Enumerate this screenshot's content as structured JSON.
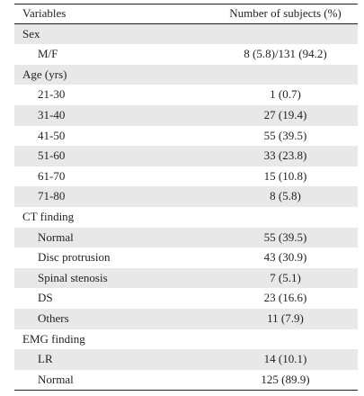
{
  "table": {
    "headers": [
      "Variables",
      "Number of subjects (%)"
    ],
    "rows": [
      {
        "label": "Sex",
        "value": "",
        "indent": false,
        "shaded": true
      },
      {
        "label": "M/F",
        "value": "8 (5.8)/131 (94.2)",
        "indent": true,
        "shaded": false
      },
      {
        "label": "Age (yrs)",
        "value": "",
        "indent": false,
        "shaded": true
      },
      {
        "label": "21-30",
        "value": "1 (0.7)",
        "indent": true,
        "shaded": false
      },
      {
        "label": "31-40",
        "value": "27 (19.4)",
        "indent": true,
        "shaded": true
      },
      {
        "label": "41-50",
        "value": "55 (39.5)",
        "indent": true,
        "shaded": false
      },
      {
        "label": "51-60",
        "value": "33 (23.8)",
        "indent": true,
        "shaded": true
      },
      {
        "label": "61-70",
        "value": "15 (10.8)",
        "indent": true,
        "shaded": false
      },
      {
        "label": "71-80",
        "value": "8 (5.8)",
        "indent": true,
        "shaded": true
      },
      {
        "label": "CT finding",
        "value": "",
        "indent": false,
        "shaded": false
      },
      {
        "label": "Normal",
        "value": "55 (39.5)",
        "indent": true,
        "shaded": true
      },
      {
        "label": "Disc protrusion",
        "value": "43 (30.9)",
        "indent": true,
        "shaded": false
      },
      {
        "label": "Spinal stenosis",
        "value": "7 (5.1)",
        "indent": true,
        "shaded": true
      },
      {
        "label": "DS",
        "value": "23 (16.6)",
        "indent": true,
        "shaded": false
      },
      {
        "label": "Others",
        "value": "11 (7.9)",
        "indent": true,
        "shaded": true
      },
      {
        "label": "EMG finding",
        "value": "",
        "indent": false,
        "shaded": false
      },
      {
        "label": "LR",
        "value": "14 (10.1)",
        "indent": true,
        "shaded": true
      },
      {
        "label": "Normal",
        "value": "125 (89.9)",
        "indent": true,
        "shaded": false
      }
    ]
  }
}
